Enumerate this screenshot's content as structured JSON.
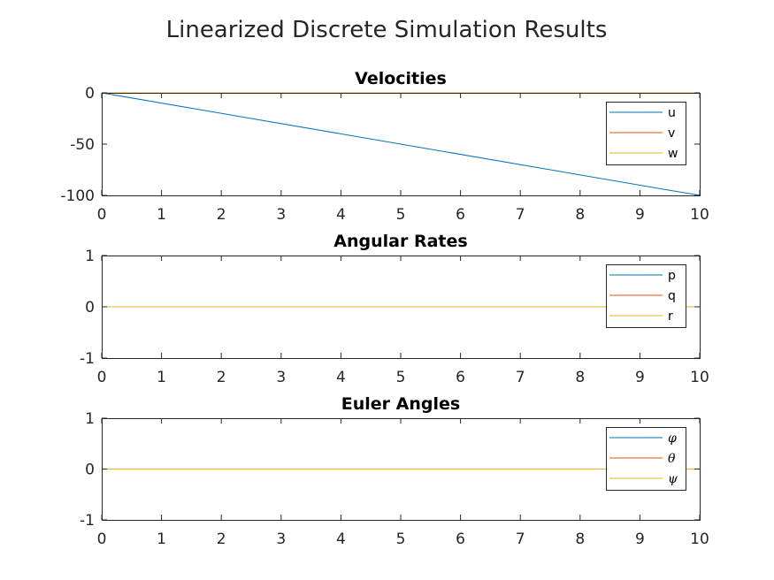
{
  "figure": {
    "title": "Linearized Discrete Simulation Results"
  },
  "chart_data": [
    {
      "type": "line",
      "title": "Velocities",
      "xlabel": "",
      "ylabel": "",
      "xlim": [
        0,
        10
      ],
      "ylim": [
        -100,
        0
      ],
      "xticks": [
        0,
        1,
        2,
        3,
        4,
        5,
        6,
        7,
        8,
        9,
        10
      ],
      "yticks": [
        0,
        -50,
        -100
      ],
      "legend": "top-right",
      "grid": false,
      "math_labels": false,
      "series": [
        {
          "name": "u",
          "color": "#0072BD",
          "x": [
            0,
            10
          ],
          "y": [
            0,
            -100
          ]
        },
        {
          "name": "v",
          "color": "#D95319",
          "x": [
            0,
            10
          ],
          "y": [
            0,
            0
          ]
        },
        {
          "name": "w",
          "color": "#EDB120",
          "x": [
            0,
            10
          ],
          "y": [
            0,
            0
          ]
        }
      ]
    },
    {
      "type": "line",
      "title": "Angular Rates",
      "xlabel": "",
      "ylabel": "",
      "xlim": [
        0,
        10
      ],
      "ylim": [
        -1,
        1
      ],
      "xticks": [
        0,
        1,
        2,
        3,
        4,
        5,
        6,
        7,
        8,
        9,
        10
      ],
      "yticks": [
        1,
        0,
        -1
      ],
      "legend": "top-right",
      "grid": false,
      "math_labels": false,
      "series": [
        {
          "name": "p",
          "color": "#0072BD",
          "x": [
            0,
            10
          ],
          "y": [
            0,
            0
          ]
        },
        {
          "name": "q",
          "color": "#D95319",
          "x": [
            0,
            10
          ],
          "y": [
            0,
            0
          ]
        },
        {
          "name": "r",
          "color": "#EDB120",
          "x": [
            0,
            10
          ],
          "y": [
            0,
            0
          ]
        }
      ]
    },
    {
      "type": "line",
      "title": "Euler Angles",
      "xlabel": "",
      "ylabel": "",
      "xlim": [
        0,
        10
      ],
      "ylim": [
        -1,
        1
      ],
      "xticks": [
        0,
        1,
        2,
        3,
        4,
        5,
        6,
        7,
        8,
        9,
        10
      ],
      "yticks": [
        1,
        0,
        -1
      ],
      "legend": "top-right",
      "grid": false,
      "math_labels": true,
      "series": [
        {
          "name": "φ",
          "color": "#0072BD",
          "x": [
            0,
            10
          ],
          "y": [
            0,
            0
          ]
        },
        {
          "name": "θ",
          "color": "#D95319",
          "x": [
            0,
            10
          ],
          "y": [
            0,
            0
          ]
        },
        {
          "name": "ψ",
          "color": "#EDB120",
          "x": [
            0,
            10
          ],
          "y": [
            0,
            0
          ]
        }
      ]
    }
  ]
}
